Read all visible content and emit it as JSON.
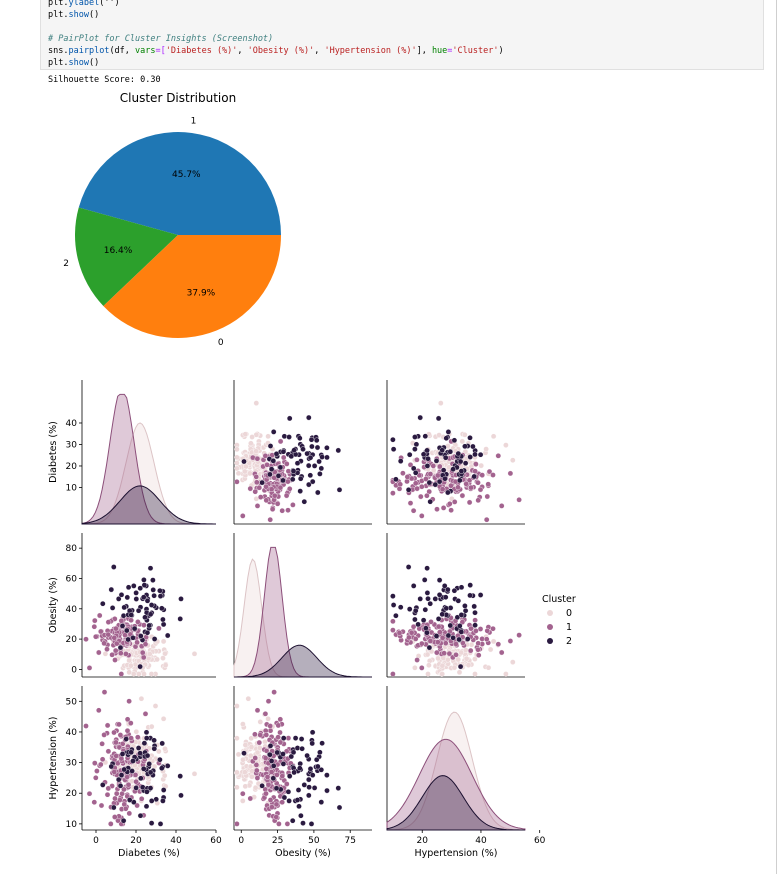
{
  "code": {
    "line1_obj": "plt",
    "line1_call": "ylabel",
    "line1_args": "('')",
    "line2_obj": "plt",
    "line2_call": "show",
    "line2_args": "()",
    "comment": "# PairPlot for Cluster Insights (Screenshot)",
    "line4_obj": "sns",
    "line4_call": "pairplot",
    "line4_open": "(df, ",
    "line4_kw1": "vars",
    "line4_eq1": "=[",
    "line4_s1": "'Diabetes (%)'",
    "line4_c1": ", ",
    "line4_s2": "'Obesity (%)'",
    "line4_c2": ", ",
    "line4_s3": "'Hypertension (%)'",
    "line4_mid": "], ",
    "line4_kw2": "hue",
    "line4_eq2": "=",
    "line4_s4": "'Cluster'",
    "line4_close": ")",
    "line5_obj": "plt",
    "line5_call": "show",
    "line5_args": "()"
  },
  "output": {
    "silhouette": "Silhouette Score: 0.30"
  },
  "chart_data": [
    {
      "type": "pie",
      "title": "Cluster Distribution",
      "labels": [
        "1",
        "2",
        "0"
      ],
      "values": [
        45.7,
        16.4,
        37.9
      ],
      "value_labels": [
        "45.7%",
        "16.4%",
        "37.9%"
      ],
      "colors": [
        "#1f77b4",
        "#2ca02c",
        "#ff7f0e"
      ],
      "start_angle_deg": 0
    },
    {
      "type": "scatter",
      "subtype": "pairplot",
      "variables": [
        "Diabetes (%)",
        "Obesity (%)",
        "Hypertension (%)"
      ],
      "ranges": {
        "Diabetes (%)": [
          -7,
          60
        ],
        "Obesity (%)": [
          -5,
          90
        ],
        "Hypertension (%)": [
          8,
          55
        ]
      },
      "ticks": {
        "Diabetes (%)": [
          0,
          20,
          40,
          60
        ],
        "Obesity (%)": [
          0,
          25,
          50,
          75
        ],
        "Hypertension (%)": [
          20,
          40,
          60
        ]
      },
      "yticks": {
        "Diabetes (%)": [
          10,
          20,
          30,
          40
        ],
        "Obesity (%)": [
          0,
          20,
          40,
          60,
          80
        ],
        "Hypertension (%)": [
          10,
          20,
          30,
          40,
          50
        ]
      },
      "diag_ranges": {
        "Hypertension (%)": [
          0,
          60
        ]
      },
      "legend": {
        "title": "Cluster",
        "placement": "right",
        "items": [
          {
            "label": "0",
            "color": "#ecd7d8"
          },
          {
            "label": "1",
            "color": "#a3638f"
          },
          {
            "label": "2",
            "color": "#2a1a40"
          }
        ]
      },
      "clusters": [
        {
          "name": "0",
          "color": "#ecd7d8",
          "edge": "#dcc4c6",
          "diab_mean": 22,
          "diab_sd": 7,
          "obes_mean": 8,
          "obes_sd": 6,
          "hyp_mean": 31,
          "hyp_sd": 6
        },
        {
          "name": "1",
          "color": "#a3638f",
          "edge": "#8c4f7a",
          "diab_mean": 13,
          "diab_sd": 6,
          "obes_mean": 22,
          "obes_sd": 6,
          "hyp_mean": 28,
          "hyp_sd": 9
        },
        {
          "name": "2",
          "color": "#2a1a40",
          "edge": "#1c1030",
          "diab_mean": 22,
          "diab_sd": 10,
          "obes_mean": 40,
          "obes_sd": 12,
          "hyp_mean": 27,
          "hyp_sd": 7
        }
      ]
    }
  ]
}
